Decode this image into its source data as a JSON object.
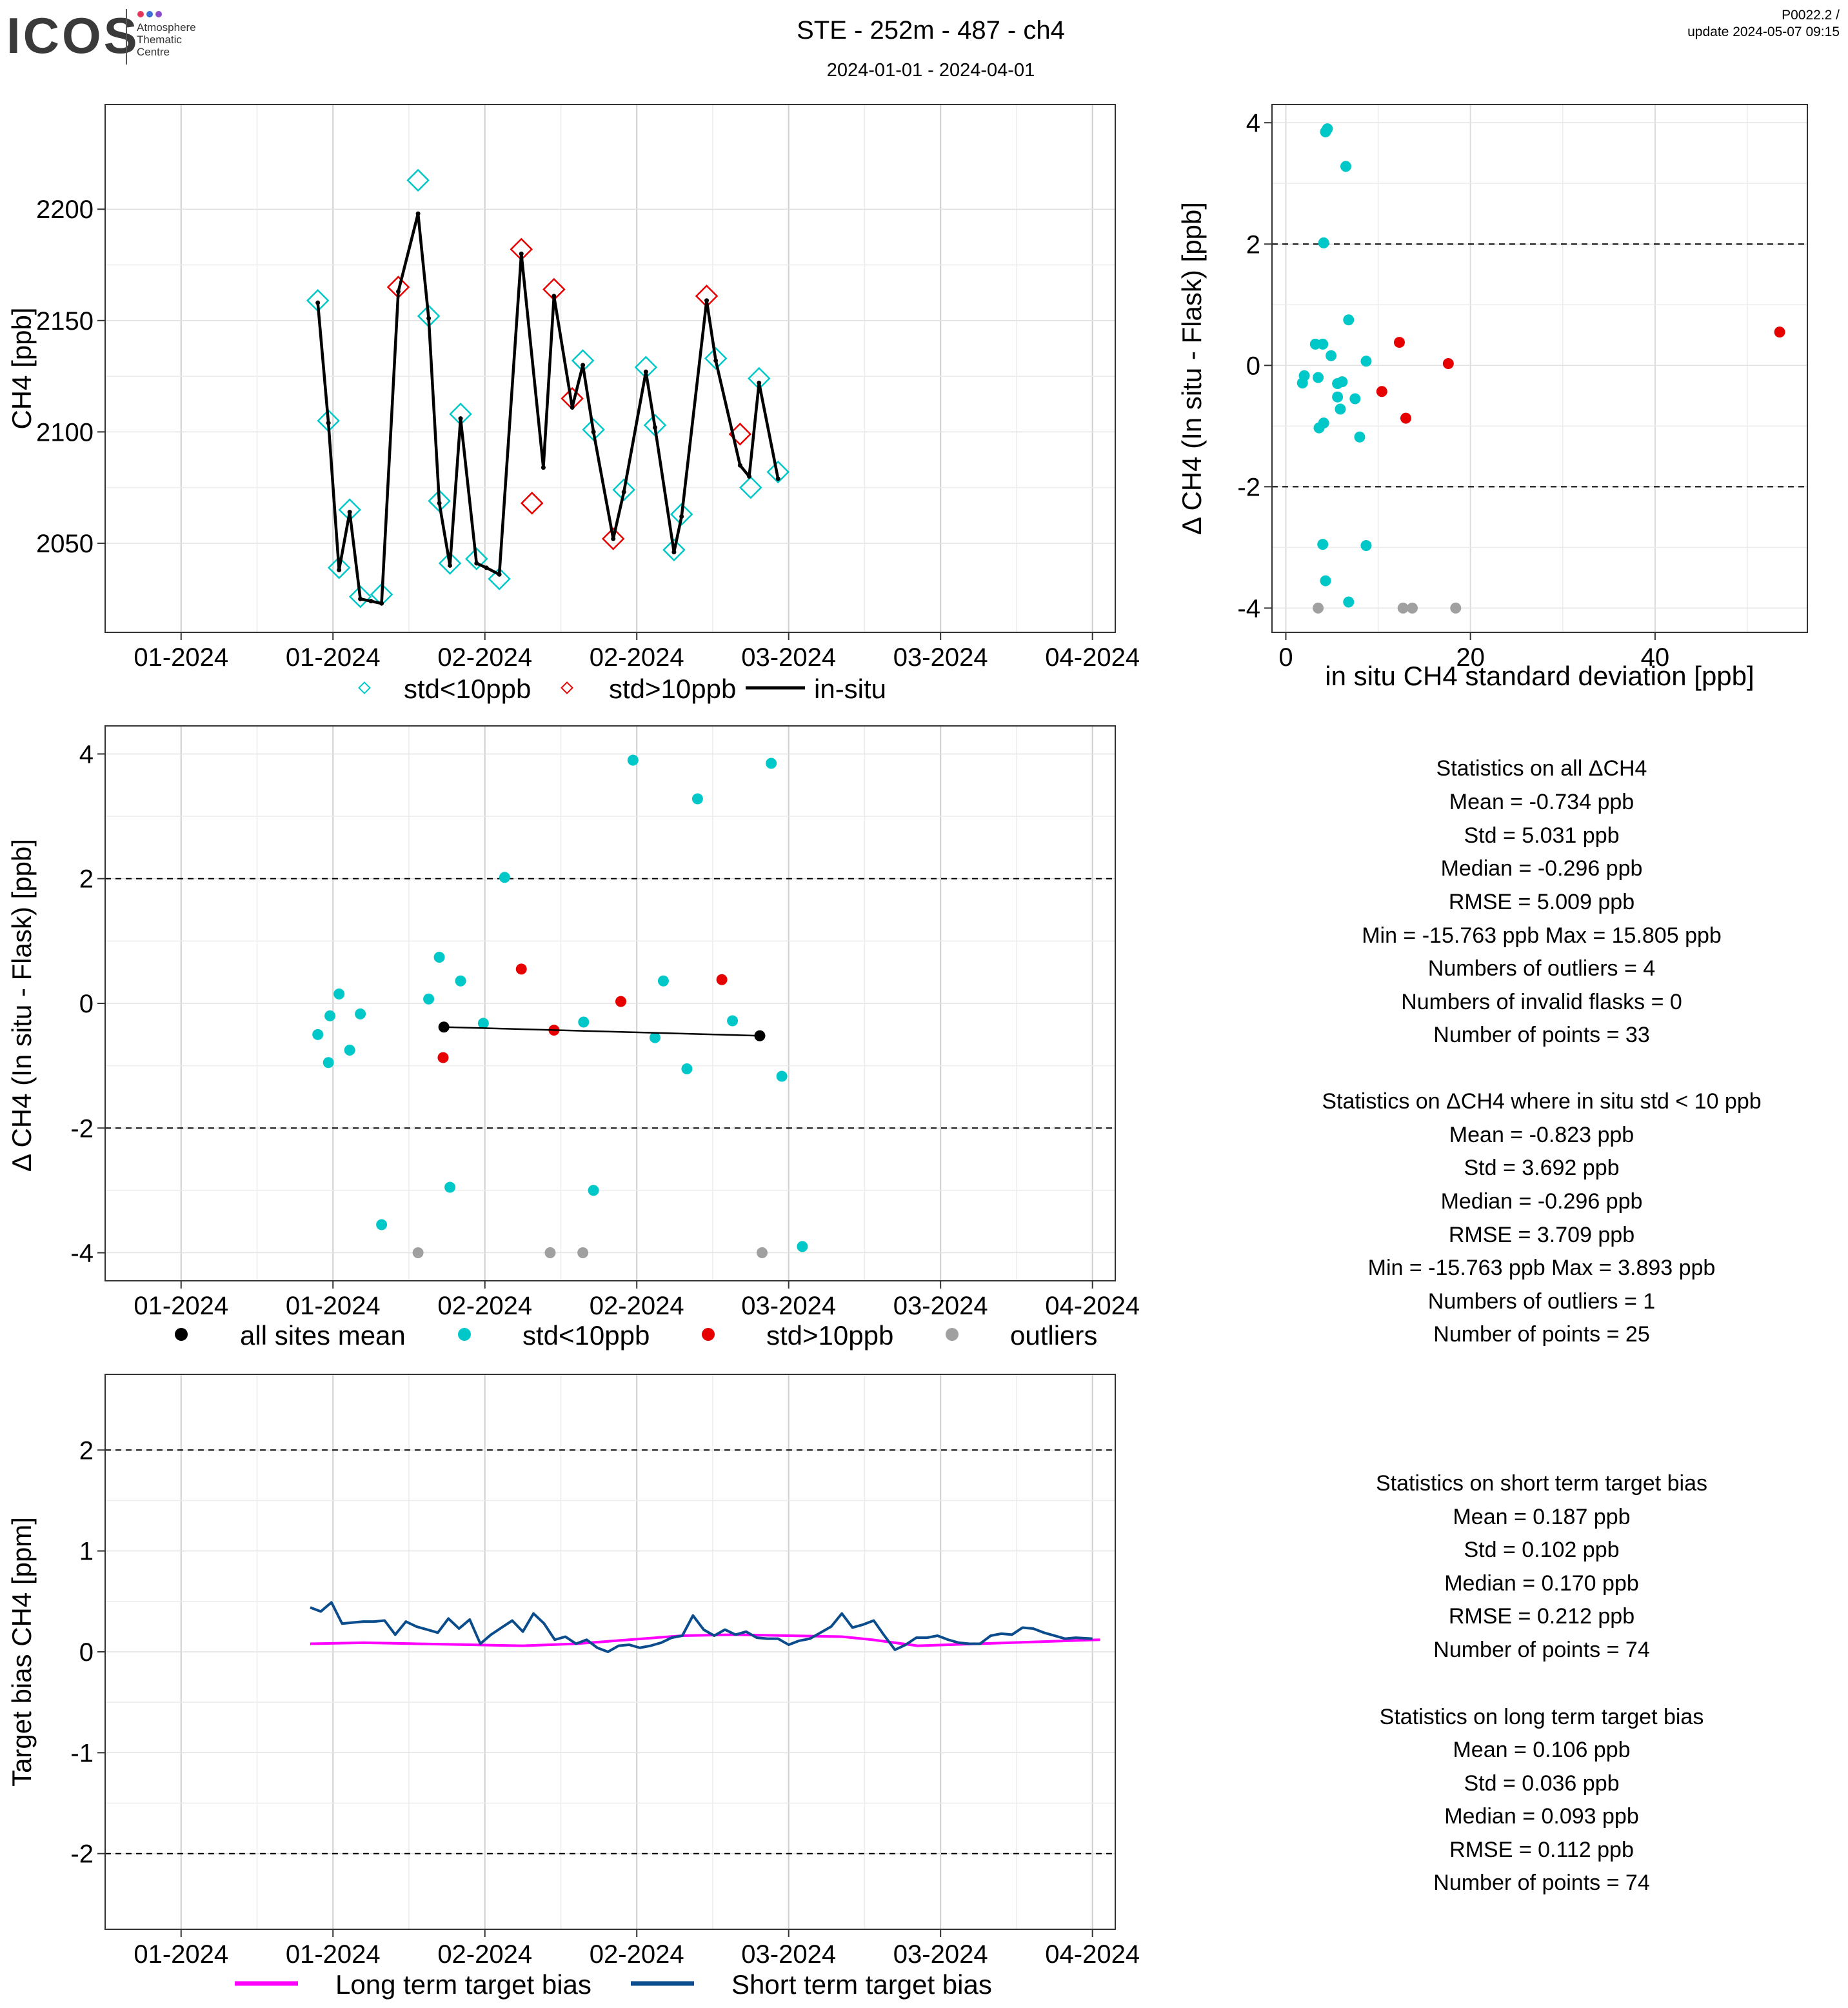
{
  "header": {
    "logo_text": "ICOS",
    "logo_sub": [
      "Atmosphere",
      "Thematic",
      "Centre"
    ],
    "title": "STE - 252m - 487 - ch4",
    "subtitle": "2024-01-01 - 2024-04-01",
    "version": "P0022.2 /",
    "update": "update  2024-05-07 09:15"
  },
  "colors": {
    "cyan": "#00C8C8",
    "red": "#E60000",
    "grey": "#A0A0A0",
    "black": "#000000",
    "magenta": "#FF00FF",
    "navy": "#0A4C8C"
  },
  "chart_data": [
    {
      "id": "timeseries",
      "type": "line",
      "ylabel": "CH4 [ppb]",
      "x_domain_days": [
        -10,
        123
      ],
      "x_tick_days": [
        0,
        20,
        40,
        60,
        80,
        100,
        120
      ],
      "x_tick_labels": [
        "01-2024",
        "01-2024",
        "02-2024",
        "02-2024",
        "03-2024",
        "03-2024",
        "04-2024"
      ],
      "ylim": [
        2010,
        2247
      ],
      "y_ticks": [
        2050,
        2100,
        2150,
        2200
      ],
      "y_tick_labels": [
        "2050",
        "2100",
        "2150",
        "2200"
      ],
      "grid": true,
      "legend_position": "bottom",
      "legend": [
        {
          "label": "std<10ppb",
          "kind": "diamond",
          "color": "cyan"
        },
        {
          "label": "std>10ppb",
          "kind": "diamond",
          "color": "red"
        },
        {
          "label": "in-situ",
          "kind": "line",
          "color": "black"
        }
      ],
      "insitu": [
        [
          18,
          2158
        ],
        [
          19.4,
          2104
        ],
        [
          20.8,
          2038
        ],
        [
          22.2,
          2064
        ],
        [
          23.6,
          2025
        ],
        [
          25,
          2024
        ],
        [
          26.4,
          2023
        ],
        [
          28.6,
          2163
        ],
        [
          31.2,
          2198
        ],
        [
          32.6,
          2151
        ],
        [
          34,
          2068
        ],
        [
          35.4,
          2040
        ],
        [
          36.8,
          2106
        ],
        [
          38.9,
          2041
        ],
        [
          40.2,
          2039
        ],
        [
          41.9,
          2036
        ],
        [
          44.8,
          2180
        ],
        [
          47.7,
          2084
        ],
        [
          49.1,
          2161
        ],
        [
          51.5,
          2111
        ],
        [
          52.9,
          2130
        ],
        [
          54.3,
          2100
        ],
        [
          56.9,
          2052
        ],
        [
          58.3,
          2073
        ],
        [
          61.2,
          2127
        ],
        [
          62.4,
          2102
        ],
        [
          64.9,
          2046
        ],
        [
          65.9,
          2062
        ],
        [
          69.2,
          2159
        ],
        [
          70.4,
          2132
        ],
        [
          73.6,
          2085
        ],
        [
          74.8,
          2080
        ],
        [
          76.1,
          2122
        ],
        [
          78.6,
          2079
        ]
      ],
      "flask_std_lt10": [
        [
          18,
          2159
        ],
        [
          19.4,
          2105
        ],
        [
          20.8,
          2039
        ],
        [
          22.2,
          2065
        ],
        [
          23.6,
          2026
        ],
        [
          26.4,
          2027
        ],
        [
          31.2,
          2213
        ],
        [
          32.6,
          2152
        ],
        [
          34,
          2069
        ],
        [
          35.4,
          2041
        ],
        [
          36.8,
          2108
        ],
        [
          38.9,
          2043
        ],
        [
          41.9,
          2034
        ],
        [
          52.9,
          2132
        ],
        [
          54.3,
          2101
        ],
        [
          58.3,
          2074
        ],
        [
          61.2,
          2129
        ],
        [
          62.4,
          2103
        ],
        [
          64.9,
          2047
        ],
        [
          65.9,
          2063
        ],
        [
          70.4,
          2133
        ],
        [
          75,
          2075
        ],
        [
          76.1,
          2124
        ],
        [
          78.6,
          2082
        ]
      ],
      "flask_std_gt10": [
        [
          28.6,
          2165
        ],
        [
          44.8,
          2182
        ],
        [
          46.2,
          2068
        ],
        [
          49.1,
          2164
        ],
        [
          51.5,
          2115
        ],
        [
          56.9,
          2052
        ],
        [
          69.2,
          2161
        ],
        [
          73.6,
          2099
        ]
      ]
    },
    {
      "id": "delta_vs_std",
      "type": "scatter",
      "xlabel": "in situ CH4 standard deviation [ppb]",
      "ylabel": "Δ CH4 (In situ - Flask) [ppb]",
      "xlim": [
        -1.5,
        56.5
      ],
      "ylim": [
        -4.4,
        4.3
      ],
      "x_ticks": [
        0,
        20,
        40
      ],
      "x_tick_labels": [
        "0",
        "20",
        "40"
      ],
      "y_ticks": [
        -4,
        -2,
        0,
        2,
        4
      ],
      "y_tick_labels": [
        "-4",
        "-2",
        "0",
        "2",
        "4"
      ],
      "hlines": [
        -2,
        2
      ],
      "grid": true,
      "points_std_lt10": [
        [
          4.5,
          3.9
        ],
        [
          4.3,
          3.85
        ],
        [
          6.5,
          3.28
        ],
        [
          4.1,
          2.02
        ],
        [
          6.8,
          0.75
        ],
        [
          3.2,
          0.35
        ],
        [
          4,
          0.35
        ],
        [
          4.9,
          0.16
        ],
        [
          8.7,
          0.07
        ],
        [
          2,
          -0.17
        ],
        [
          3.5,
          -0.2
        ],
        [
          1.8,
          -0.29
        ],
        [
          6.1,
          -0.27
        ],
        [
          5.6,
          -0.3
        ],
        [
          5.6,
          -0.52
        ],
        [
          7.5,
          -0.55
        ],
        [
          5.9,
          -0.72
        ],
        [
          4.1,
          -0.95
        ],
        [
          3.6,
          -1.03
        ],
        [
          8,
          -1.18
        ],
        [
          4,
          -2.95
        ],
        [
          8.7,
          -2.97
        ],
        [
          4.3,
          -3.55
        ],
        [
          6.8,
          -3.9
        ]
      ],
      "points_std_gt10": [
        [
          53.5,
          0.55
        ],
        [
          12.3,
          0.38
        ],
        [
          17.6,
          0.03
        ],
        [
          10.4,
          -0.43
        ],
        [
          13,
          -0.87
        ]
      ],
      "points_outlier": [
        [
          3.5,
          -4
        ],
        [
          12.7,
          -4
        ],
        [
          13.7,
          -4
        ],
        [
          18.4,
          -4
        ]
      ]
    },
    {
      "id": "delta_timeseries",
      "type": "scatter",
      "ylabel": "Δ CH4 (In situ - Flask) [ppb]",
      "x_domain_days": [
        -10,
        123
      ],
      "x_tick_days": [
        0,
        20,
        40,
        60,
        80,
        100,
        120
      ],
      "x_tick_labels": [
        "01-2024",
        "01-2024",
        "02-2024",
        "02-2024",
        "03-2024",
        "03-2024",
        "04-2024"
      ],
      "ylim": [
        -4.45,
        4.45
      ],
      "y_ticks": [
        -4,
        -2,
        0,
        2,
        4
      ],
      "y_tick_labels": [
        "-4",
        "-2",
        "0",
        "2",
        "4"
      ],
      "hlines": [
        -2,
        2
      ],
      "grid": true,
      "legend_position": "bottom",
      "legend": [
        {
          "label": "all sites mean",
          "color": "black"
        },
        {
          "label": "std<10ppb",
          "color": "cyan"
        },
        {
          "label": "std>10ppb",
          "color": "red"
        },
        {
          "label": "outliers",
          "color": "grey"
        }
      ],
      "points_std_lt10": [
        [
          18,
          -0.5
        ],
        [
          19.4,
          -0.95
        ],
        [
          19.6,
          -0.2
        ],
        [
          20.8,
          0.15
        ],
        [
          22.2,
          -0.75
        ],
        [
          23.6,
          -0.17
        ],
        [
          26.4,
          -3.55
        ],
        [
          32.6,
          0.07
        ],
        [
          34,
          0.74
        ],
        [
          35.4,
          -2.95
        ],
        [
          36.8,
          0.36
        ],
        [
          39.8,
          -0.32
        ],
        [
          42.6,
          2.02
        ],
        [
          54.3,
          -3.0
        ],
        [
          53,
          -0.3
        ],
        [
          59.5,
          3.9
        ],
        [
          62.4,
          -0.55
        ],
        [
          63.5,
          0.36
        ],
        [
          66.6,
          -1.05
        ],
        [
          68,
          3.28
        ],
        [
          72.6,
          -0.28
        ],
        [
          77.7,
          3.85
        ],
        [
          79.1,
          -1.17
        ],
        [
          81.8,
          -3.9
        ]
      ],
      "points_std_gt10": [
        [
          34.5,
          -0.87
        ],
        [
          44.8,
          0.55
        ],
        [
          49.1,
          -0.43
        ],
        [
          57.9,
          0.03
        ],
        [
          71.2,
          0.38
        ]
      ],
      "points_outlier": [
        [
          31.2,
          -4
        ],
        [
          48.6,
          -4
        ],
        [
          52.9,
          -4
        ],
        [
          76.5,
          -4
        ]
      ],
      "mean_line": [
        [
          34.6,
          -0.38
        ],
        [
          76.2,
          -0.52
        ]
      ]
    },
    {
      "id": "target_bias",
      "type": "line",
      "ylabel": "Target bias CH4 [ppm]",
      "x_domain_days": [
        -10,
        123
      ],
      "x_tick_days": [
        0,
        20,
        40,
        60,
        80,
        100,
        120
      ],
      "x_tick_labels": [
        "01-2024",
        "01-2024",
        "02-2024",
        "02-2024",
        "03-2024",
        "03-2024",
        "04-2024"
      ],
      "ylim": [
        -2.75,
        2.75
      ],
      "y_ticks": [
        -2,
        -1,
        0,
        1,
        2
      ],
      "y_tick_labels": [
        "-2",
        "-1",
        "0",
        "1",
        "2"
      ],
      "hlines": [
        -2,
        2
      ],
      "grid": true,
      "legend_position": "bottom",
      "legend": [
        {
          "label": "Long term target bias",
          "color": "magenta"
        },
        {
          "label": "Short term target bias",
          "color": "navy"
        }
      ],
      "long_term": [
        [
          17,
          0.08
        ],
        [
          24,
          0.09
        ],
        [
          31,
          0.08
        ],
        [
          38,
          0.07
        ],
        [
          45,
          0.06
        ],
        [
          52,
          0.08
        ],
        [
          59,
          0.12
        ],
        [
          66,
          0.16
        ],
        [
          73,
          0.17
        ],
        [
          80,
          0.16
        ],
        [
          87,
          0.15
        ],
        [
          91,
          0.12
        ],
        [
          97,
          0.06
        ],
        [
          105,
          0.08
        ],
        [
          113,
          0.1
        ],
        [
          121,
          0.12
        ]
      ],
      "short_term": [
        [
          17,
          0.44
        ],
        [
          18.4,
          0.4
        ],
        [
          19.8,
          0.49
        ],
        [
          21.2,
          0.28
        ],
        [
          22.6,
          0.29
        ],
        [
          24,
          0.3
        ],
        [
          25.4,
          0.3
        ],
        [
          26.8,
          0.31
        ],
        [
          28.2,
          0.17
        ],
        [
          29.6,
          0.3
        ],
        [
          31,
          0.25
        ],
        [
          32.4,
          0.22
        ],
        [
          33.8,
          0.19
        ],
        [
          35.2,
          0.33
        ],
        [
          36.6,
          0.23
        ],
        [
          38,
          0.32
        ],
        [
          39.4,
          0.08
        ],
        [
          40.8,
          0.17
        ],
        [
          42.2,
          0.24
        ],
        [
          43.6,
          0.31
        ],
        [
          45,
          0.2
        ],
        [
          46.4,
          0.38
        ],
        [
          47.8,
          0.28
        ],
        [
          49.2,
          0.12
        ],
        [
          50.6,
          0.15
        ],
        [
          52,
          0.08
        ],
        [
          53.4,
          0.12
        ],
        [
          54.8,
          0.04
        ],
        [
          56.2,
          0.0
        ],
        [
          57.6,
          0.06
        ],
        [
          59,
          0.07
        ],
        [
          60.4,
          0.04
        ],
        [
          61.8,
          0.06
        ],
        [
          63.2,
          0.09
        ],
        [
          64.6,
          0.14
        ],
        [
          66,
          0.16
        ],
        [
          67.4,
          0.36
        ],
        [
          68.8,
          0.22
        ],
        [
          70.2,
          0.16
        ],
        [
          71.6,
          0.22
        ],
        [
          73,
          0.17
        ],
        [
          74.4,
          0.2
        ],
        [
          75.8,
          0.14
        ],
        [
          77.2,
          0.13
        ],
        [
          78.6,
          0.13
        ],
        [
          80,
          0.07
        ],
        [
          81.4,
          0.11
        ],
        [
          82.8,
          0.13
        ],
        [
          84.2,
          0.19
        ],
        [
          85.6,
          0.25
        ],
        [
          87,
          0.38
        ],
        [
          88.4,
          0.24
        ],
        [
          89.8,
          0.27
        ],
        [
          91.2,
          0.31
        ],
        [
          92.6,
          0.16
        ],
        [
          94,
          0.02
        ],
        [
          95.4,
          0.07
        ],
        [
          96.8,
          0.14
        ],
        [
          98.2,
          0.14
        ],
        [
          99.6,
          0.16
        ],
        [
          101,
          0.12
        ],
        [
          102.4,
          0.09
        ],
        [
          103.8,
          0.08
        ],
        [
          105.2,
          0.08
        ],
        [
          106.6,
          0.16
        ],
        [
          108,
          0.18
        ],
        [
          109.4,
          0.17
        ],
        [
          110.8,
          0.24
        ],
        [
          112.2,
          0.23
        ],
        [
          113.6,
          0.19
        ],
        [
          115,
          0.16
        ],
        [
          116.4,
          0.13
        ],
        [
          117.8,
          0.14
        ],
        [
          120,
          0.13
        ]
      ]
    }
  ],
  "stats_all": {
    "title": "Statistics on all ΔCH4",
    "lines": [
      "Mean =  -0.734 ppb",
      "Std =  5.031 ppb",
      "Median =  -0.296 ppb",
      "RMSE =  5.009 ppb",
      "Min =  -15.763 ppb Max =  15.805 ppb",
      "Numbers of outliers =  4",
      "Numbers of invalid flasks =  0",
      "Number of points =  33"
    ]
  },
  "stats_lt10": {
    "title": "Statistics on ΔCH4 where in situ std < 10 ppb",
    "lines": [
      "Mean =  -0.823 ppb",
      "Std =  3.692 ppb",
      "Median =  -0.296 ppb",
      "RMSE =  3.709 ppb",
      "Min =  -15.763 ppb Max =  3.893 ppb",
      "Numbers of outliers =  1",
      "Number of points =  25"
    ]
  },
  "stats_short": {
    "title": "Statistics on short term target bias",
    "lines": [
      "Mean =  0.187 ppb",
      "Std =  0.102 ppb",
      "Median =  0.170 ppb",
      "RMSE =  0.212 ppb",
      "Number of points =  74"
    ]
  },
  "stats_long": {
    "title": "Statistics on long term target bias",
    "lines": [
      "Mean =  0.106 ppb",
      "Std =  0.036 ppb",
      "Median =  0.093 ppb",
      "RMSE =  0.112 ppb",
      "Number of points =  74"
    ]
  }
}
